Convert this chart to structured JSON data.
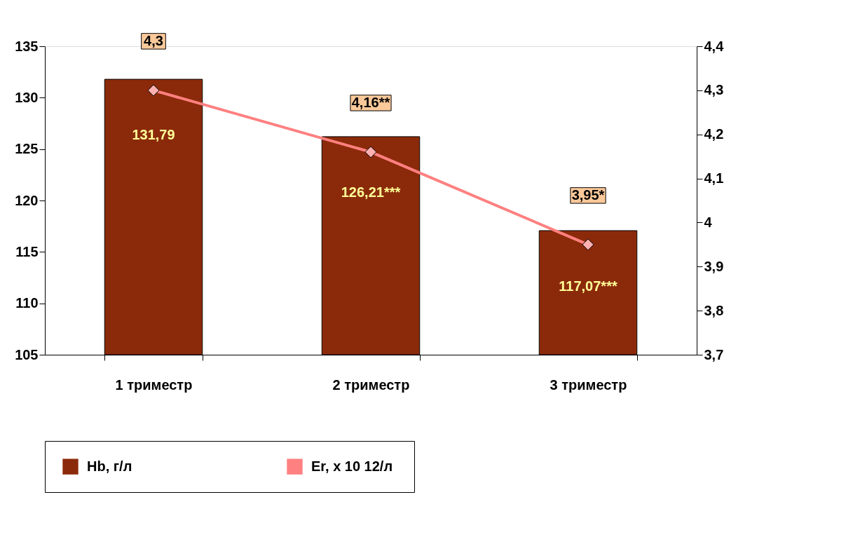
{
  "chart_data": {
    "type": "bar",
    "categories": [
      "1 триместр",
      "2 триместр",
      "3 триместр"
    ],
    "series": [
      {
        "name": "Hb, г/л",
        "color": "#8b2a0a",
        "values": [
          131.79,
          126.21,
          117.07
        ],
        "value_labels": [
          "131,79",
          "126,21***",
          "117,07***"
        ]
      },
      {
        "name": "Er,  x 10 12/л",
        "type": "line",
        "axis": "y2",
        "color": "#ff8080",
        "values": [
          4.3,
          4.16,
          3.95
        ],
        "value_labels": [
          "4,3",
          "4,16**",
          "3,95*"
        ]
      }
    ],
    "ylim": [
      105,
      135
    ],
    "yticks": [
      105,
      110,
      115,
      120,
      125,
      130,
      135
    ],
    "y2lim": [
      3.7,
      4.4
    ],
    "y2ticks": [
      {
        "value": 3.7,
        "label": "3,7"
      },
      {
        "value": 3.8,
        "label": "3,8"
      },
      {
        "value": 3.9,
        "label": "3,9"
      },
      {
        "value": 4.0,
        "label": "4"
      },
      {
        "value": 4.1,
        "label": "4,1"
      },
      {
        "value": 4.2,
        "label": "4,2"
      },
      {
        "value": 4.3,
        "label": "4,3"
      },
      {
        "value": 4.4,
        "label": "4,4"
      }
    ],
    "legend": "bottom",
    "marker": "diamond",
    "grid": false
  }
}
